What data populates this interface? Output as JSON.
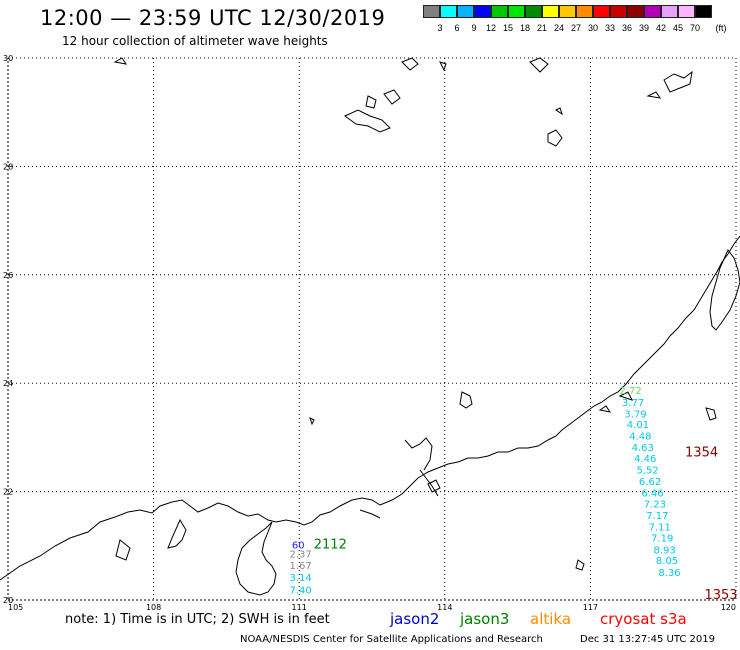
{
  "header": {
    "title": "12:00 — 23:59 UTC 12/30/2019",
    "subtitle": "12 hour collection of altimeter wave heights"
  },
  "legend": {
    "unit": "(ft)",
    "colors": [
      "#808080",
      "#00ffff",
      "#00b4ff",
      "#0000ff",
      "#00c800",
      "#00e600",
      "#008c00",
      "#ffff00",
      "#ffc800",
      "#ff8c00",
      "#ff0000",
      "#c80000",
      "#8c0000",
      "#b400b4",
      "#e6a0ff",
      "#ffb4ff",
      "#000000"
    ],
    "labels": [
      "3",
      "6",
      "9",
      "12",
      "15",
      "18",
      "21",
      "24",
      "27",
      "30",
      "33",
      "36",
      "39",
      "42",
      "45",
      "70"
    ]
  },
  "map": {
    "lon_ticks": [
      "105",
      "108",
      "111",
      "114",
      "117",
      "120"
    ],
    "lat_ticks": [
      "30",
      "28",
      "26",
      "24",
      "22",
      "20"
    ],
    "lon_range": [
      105,
      120
    ],
    "lat_range": [
      20,
      30
    ]
  },
  "tracks": [
    {
      "id": "2112",
      "color": "#008000",
      "lon": 111.3,
      "lat": 20.95
    },
    {
      "id": "1354",
      "color": "#8b0000",
      "lon": 118.95,
      "lat": 22.65
    },
    {
      "id": "1353",
      "color": "#8b0000",
      "lon": 119.35,
      "lat": 20.02
    }
  ],
  "swh_points": [
    {
      "v": "60",
      "color": "#1a1aff",
      "lon": 110.85,
      "lat": 20.95
    },
    {
      "v": "2.37",
      "color": "#888888",
      "lon": 110.8,
      "lat": 20.78
    },
    {
      "v": "1.67",
      "color": "#888888",
      "lon": 110.8,
      "lat": 20.57
    },
    {
      "v": "3.14",
      "color": "#00c8e6",
      "lon": 110.8,
      "lat": 20.35
    },
    {
      "v": "7.40",
      "color": "#00c8e6",
      "lon": 110.8,
      "lat": 20.12
    },
    {
      "v": "2.72",
      "color": "#66dd66",
      "lon": 117.6,
      "lat": 23.8
    },
    {
      "v": "3.77",
      "color": "#00c8e6",
      "lon": 117.65,
      "lat": 23.58
    },
    {
      "v": "3.79",
      "color": "#00c8e6",
      "lon": 117.7,
      "lat": 23.37
    },
    {
      "v": "4.01",
      "color": "#00c8e6",
      "lon": 117.75,
      "lat": 23.17
    },
    {
      "v": "4.48",
      "color": "#00c8e6",
      "lon": 117.8,
      "lat": 22.96
    },
    {
      "v": "4.63",
      "color": "#00c8e6",
      "lon": 117.85,
      "lat": 22.75
    },
    {
      "v": "4.46",
      "color": "#00c8e6",
      "lon": 117.9,
      "lat": 22.55
    },
    {
      "v": "5.52",
      "color": "#00c8e6",
      "lon": 117.95,
      "lat": 22.33
    },
    {
      "v": "6.62",
      "color": "#00c8e6",
      "lon": 118.0,
      "lat": 22.12
    },
    {
      "v": "6.46",
      "color": "#00c8e6",
      "lon": 118.05,
      "lat": 21.91
    },
    {
      "v": "7.23",
      "color": "#00c8e6",
      "lon": 118.1,
      "lat": 21.71
    },
    {
      "v": "7.17",
      "color": "#00c8e6",
      "lon": 118.15,
      "lat": 21.49
    },
    {
      "v": "7.11",
      "color": "#00c8e6",
      "lon": 118.2,
      "lat": 21.28
    },
    {
      "v": "7.19",
      "color": "#00c8e6",
      "lon": 118.25,
      "lat": 21.08
    },
    {
      "v": "8.93",
      "color": "#00c8e6",
      "lon": 118.3,
      "lat": 20.86
    },
    {
      "v": "8.05",
      "color": "#00c8e6",
      "lon": 118.35,
      "lat": 20.66
    },
    {
      "v": "8.36",
      "color": "#00c8e6",
      "lon": 118.4,
      "lat": 20.44
    }
  ],
  "footer": {
    "note": "note: 1) Time is in UTC; 2) SWH is in feet",
    "satellites": [
      {
        "name": "jason2",
        "color": "#0000cc"
      },
      {
        "name": "jason3",
        "color": "#008000"
      },
      {
        "name": "altika",
        "color": "#ff8c00"
      },
      {
        "name": "cryosat s3a",
        "color": "#ff0000"
      }
    ],
    "credit": "NOAA/NESDIS Center for Satellite Applications and Research",
    "timestamp": "Dec 31 13:27:45 UTC 2019"
  }
}
